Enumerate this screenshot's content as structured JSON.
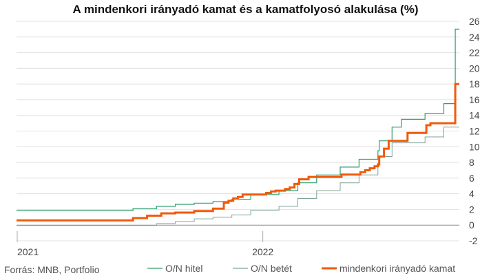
{
  "source": "Forrás: MNB, Portfolio",
  "chart_data": {
    "type": "line",
    "title": "A mindenkori irányadó kamat és a kamatfolyosó alakulása (%)",
    "xlabel": "",
    "ylabel": "",
    "ylim": [
      -2,
      26
    ],
    "yticks": [
      "26",
      "24",
      "22",
      "20",
      "18",
      "16",
      "14",
      "12",
      "10",
      "8",
      "6",
      "4",
      "2",
      "0",
      "-2"
    ],
    "xticks": [
      {
        "x": "2021-01-01",
        "label": "2021"
      },
      {
        "x": "2022-01-01",
        "label": "2022"
      }
    ],
    "xlim": [
      "2020-12-31",
      "2022-10-20"
    ],
    "grid": "horizontal",
    "axis_position": "right",
    "legend_position": "bottom",
    "colors": {
      "on_hitel": "#2e9e6e",
      "on_betet": "#7fa39a",
      "alapkamat": "#f05a0a",
      "grid": "#e0e0e0",
      "zero_line": "#888888"
    },
    "series": [
      {
        "name": "O/N hitel",
        "step": true,
        "points": [
          [
            "2020-12-31",
            1.85
          ],
          [
            "2021-06-22",
            1.85
          ],
          [
            "2021-06-22",
            2.1
          ],
          [
            "2021-07-27",
            2.1
          ],
          [
            "2021-07-27",
            2.4
          ],
          [
            "2021-08-24",
            2.4
          ],
          [
            "2021-08-24",
            2.65
          ],
          [
            "2021-09-21",
            2.65
          ],
          [
            "2021-09-21",
            2.8
          ],
          [
            "2021-10-19",
            2.8
          ],
          [
            "2021-10-19",
            3.0
          ],
          [
            "2021-11-16",
            3.0
          ],
          [
            "2021-11-16",
            3.3
          ],
          [
            "2021-12-14",
            3.3
          ],
          [
            "2021-12-14",
            3.9
          ],
          [
            "2022-01-25",
            3.9
          ],
          [
            "2022-01-25",
            4.4
          ],
          [
            "2022-02-22",
            4.4
          ],
          [
            "2022-02-22",
            5.4
          ],
          [
            "2022-03-22",
            5.4
          ],
          [
            "2022-03-22",
            6.4
          ],
          [
            "2022-04-26",
            6.4
          ],
          [
            "2022-04-26",
            7.4
          ],
          [
            "2022-05-24",
            7.4
          ],
          [
            "2022-05-24",
            8.4
          ],
          [
            "2022-06-21",
            8.4
          ],
          [
            "2022-06-21",
            9.5
          ],
          [
            "2022-06-23",
            9.5
          ],
          [
            "2022-06-23",
            10.75
          ],
          [
            "2022-07-12",
            10.75
          ],
          [
            "2022-07-12",
            12.5
          ],
          [
            "2022-07-26",
            12.5
          ],
          [
            "2022-07-26",
            13.5
          ],
          [
            "2022-08-30",
            13.5
          ],
          [
            "2022-08-30",
            14.25
          ],
          [
            "2022-09-27",
            14.25
          ],
          [
            "2022-09-27",
            15.5
          ],
          [
            "2022-10-14",
            15.5
          ],
          [
            "2022-10-14",
            25.0
          ],
          [
            "2022-10-20",
            25.0
          ]
        ]
      },
      {
        "name": "O/N betét",
        "step": true,
        "points": [
          [
            "2020-12-31",
            -0.05
          ],
          [
            "2021-07-27",
            -0.05
          ],
          [
            "2021-07-27",
            0.2
          ],
          [
            "2021-08-24",
            0.2
          ],
          [
            "2021-08-24",
            0.45
          ],
          [
            "2021-09-21",
            0.45
          ],
          [
            "2021-09-21",
            0.8
          ],
          [
            "2021-10-19",
            0.8
          ],
          [
            "2021-10-19",
            1.0
          ],
          [
            "2021-11-16",
            1.0
          ],
          [
            "2021-11-16",
            1.3
          ],
          [
            "2021-12-14",
            1.3
          ],
          [
            "2021-12-14",
            1.9
          ],
          [
            "2022-01-25",
            1.9
          ],
          [
            "2022-01-25",
            2.4
          ],
          [
            "2022-02-22",
            2.4
          ],
          [
            "2022-02-22",
            3.4
          ],
          [
            "2022-03-22",
            3.4
          ],
          [
            "2022-03-22",
            4.4
          ],
          [
            "2022-04-26",
            4.4
          ],
          [
            "2022-04-26",
            5.4
          ],
          [
            "2022-05-24",
            5.4
          ],
          [
            "2022-05-24",
            6.4
          ],
          [
            "2022-06-21",
            6.4
          ],
          [
            "2022-06-21",
            7.5
          ],
          [
            "2022-06-23",
            7.5
          ],
          [
            "2022-06-23",
            8.75
          ],
          [
            "2022-07-12",
            8.75
          ],
          [
            "2022-07-12",
            10.5
          ],
          [
            "2022-08-30",
            10.5
          ],
          [
            "2022-08-30",
            11.25
          ],
          [
            "2022-09-27",
            11.25
          ],
          [
            "2022-09-27",
            12.5
          ],
          [
            "2022-10-20",
            12.5
          ]
        ]
      },
      {
        "name": "mindenkori irányadó kamat",
        "step": true,
        "points": [
          [
            "2020-12-31",
            0.6
          ],
          [
            "2021-06-22",
            0.6
          ],
          [
            "2021-06-22",
            0.9
          ],
          [
            "2021-07-13",
            0.9
          ],
          [
            "2021-07-13",
            1.2
          ],
          [
            "2021-08-03",
            1.2
          ],
          [
            "2021-08-03",
            1.5
          ],
          [
            "2021-08-24",
            1.5
          ],
          [
            "2021-08-24",
            1.6
          ],
          [
            "2021-09-21",
            1.6
          ],
          [
            "2021-09-21",
            1.8
          ],
          [
            "2021-10-19",
            1.8
          ],
          [
            "2021-10-19",
            2.1
          ],
          [
            "2021-11-04",
            2.1
          ],
          [
            "2021-11-04",
            2.85
          ],
          [
            "2021-11-11",
            2.85
          ],
          [
            "2021-11-11",
            3.1
          ],
          [
            "2021-11-18",
            3.1
          ],
          [
            "2021-11-18",
            3.4
          ],
          [
            "2021-11-25",
            3.4
          ],
          [
            "2021-11-25",
            3.6
          ],
          [
            "2021-12-02",
            3.6
          ],
          [
            "2021-12-02",
            3.9
          ],
          [
            "2021-12-09",
            3.9
          ],
          [
            "2022-01-06",
            3.9
          ],
          [
            "2022-01-06",
            4.1
          ],
          [
            "2022-01-13",
            4.1
          ],
          [
            "2022-01-13",
            4.3
          ],
          [
            "2022-01-20",
            4.3
          ],
          [
            "2022-01-20",
            4.4
          ],
          [
            "2022-02-03",
            4.4
          ],
          [
            "2022-02-03",
            4.6
          ],
          [
            "2022-02-10",
            4.6
          ],
          [
            "2022-02-10",
            4.8
          ],
          [
            "2022-02-17",
            4.8
          ],
          [
            "2022-02-17",
            5.25
          ],
          [
            "2022-02-24",
            5.25
          ],
          [
            "2022-02-24",
            5.85
          ],
          [
            "2022-03-10",
            5.85
          ],
          [
            "2022-03-10",
            6.15
          ],
          [
            "2022-04-28",
            6.15
          ],
          [
            "2022-04-28",
            6.45
          ],
          [
            "2022-05-26",
            6.45
          ],
          [
            "2022-05-26",
            6.75
          ],
          [
            "2022-06-02",
            6.75
          ],
          [
            "2022-06-02",
            7.0
          ],
          [
            "2022-06-09",
            7.0
          ],
          [
            "2022-06-09",
            7.25
          ],
          [
            "2022-06-16",
            7.25
          ],
          [
            "2022-06-16",
            7.5
          ],
          [
            "2022-06-21",
            7.5
          ],
          [
            "2022-06-21",
            7.75
          ],
          [
            "2022-06-23",
            7.75
          ],
          [
            "2022-06-23",
            8.75
          ],
          [
            "2022-06-30",
            8.75
          ],
          [
            "2022-06-30",
            9.75
          ],
          [
            "2022-07-07",
            9.75
          ],
          [
            "2022-07-07",
            10.75
          ],
          [
            "2022-08-04",
            10.75
          ],
          [
            "2022-08-04",
            11.75
          ],
          [
            "2022-09-01",
            11.75
          ],
          [
            "2022-09-01",
            12.75
          ],
          [
            "2022-09-07",
            12.75
          ],
          [
            "2022-09-07",
            13.0
          ],
          [
            "2022-09-22",
            13.0
          ],
          [
            "2022-09-27",
            13.0
          ],
          [
            "2022-09-27",
            13.0
          ],
          [
            "2022-10-14",
            13.0
          ],
          [
            "2022-10-14",
            18.0
          ],
          [
            "2022-10-20",
            18.0
          ]
        ]
      }
    ]
  }
}
